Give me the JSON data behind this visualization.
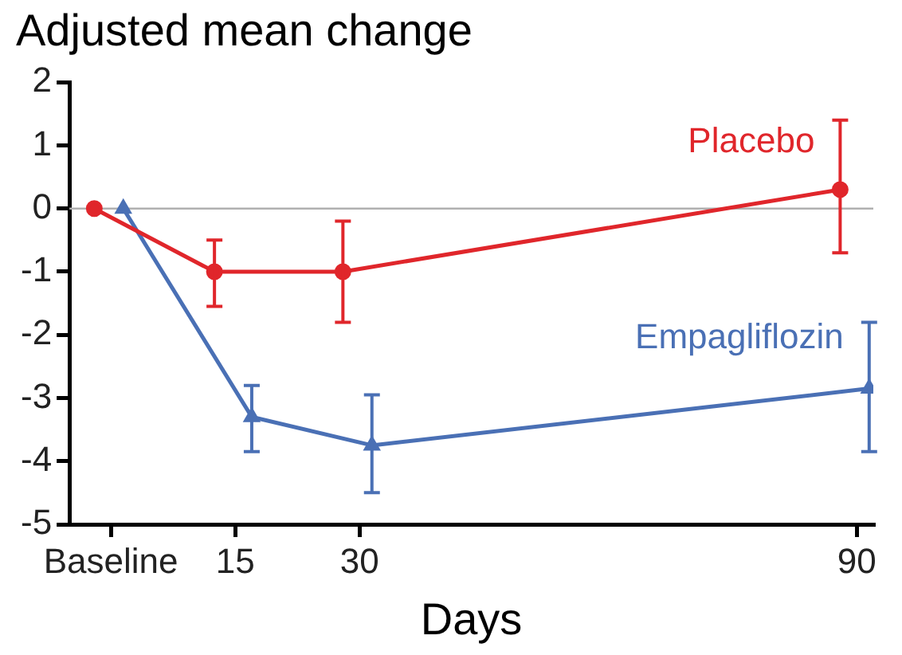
{
  "chart_data": {
    "type": "line",
    "title": "Adjusted mean change",
    "xlabel": "Days",
    "series": [
      {
        "name": "Placebo",
        "color": "#e0262b",
        "marker": "circle",
        "x": [
          -2,
          12.5,
          28,
          88
        ],
        "values": [
          0,
          -1.0,
          -1.0,
          0.3
        ],
        "errors": [
          null,
          [
            -1.55,
            -0.5
          ],
          [
            -1.8,
            -0.2
          ],
          [
            -0.7,
            1.4
          ]
        ]
      },
      {
        "name": "Empagliflozin",
        "color": "#4a70b5",
        "marker": "triangle",
        "x": [
          1.5,
          17,
          31.5,
          91.5
        ],
        "values": [
          0,
          -3.3,
          -3.75,
          -2.85
        ],
        "errors": [
          null,
          [
            -3.85,
            -2.8
          ],
          [
            -4.5,
            -2.95
          ],
          [
            -3.85,
            -1.8
          ]
        ]
      }
    ],
    "xlim": [
      -5,
      92
    ],
    "xticks": [
      {
        "value": 0,
        "label": "Baseline"
      },
      15,
      30,
      90
    ],
    "ylim": [
      -5,
      2
    ],
    "yticks": [
      -5,
      -4,
      -3,
      -2,
      -1,
      0,
      1,
      2
    ],
    "ref_lines": [
      {
        "axis": "y",
        "value": 0,
        "color": "#b0b0b0"
      }
    ],
    "grid": false,
    "legend": false
  }
}
